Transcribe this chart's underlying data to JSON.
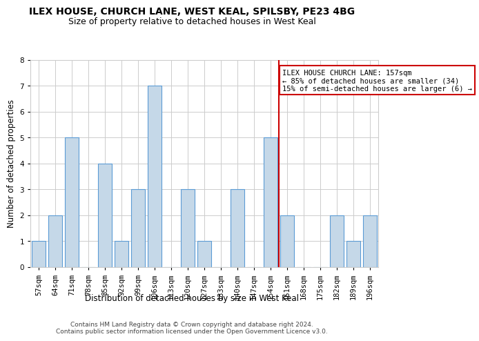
{
  "title1": "ILEX HOUSE, CHURCH LANE, WEST KEAL, SPILSBY, PE23 4BG",
  "title2": "Size of property relative to detached houses in West Keal",
  "xlabel": "Distribution of detached houses by size in West Keal",
  "ylabel": "Number of detached properties",
  "categories": [
    "57sqm",
    "64sqm",
    "71sqm",
    "78sqm",
    "85sqm",
    "92sqm",
    "99sqm",
    "106sqm",
    "113sqm",
    "120sqm",
    "127sqm",
    "133sqm",
    "140sqm",
    "147sqm",
    "154sqm",
    "161sqm",
    "168sqm",
    "175sqm",
    "182sqm",
    "189sqm",
    "196sqm"
  ],
  "values": [
    1,
    2,
    5,
    0,
    4,
    1,
    3,
    7,
    0,
    3,
    1,
    0,
    3,
    0,
    5,
    2,
    0,
    0,
    2,
    1,
    2
  ],
  "bar_color": "#c5d8e8",
  "bar_edge_color": "#5b9bd5",
  "vline_color": "#cc0000",
  "annotation_text": "ILEX HOUSE CHURCH LANE: 157sqm\n← 85% of detached houses are smaller (34)\n15% of semi-detached houses are larger (6) →",
  "annotation_box_color": "#ffffff",
  "annotation_box_edge_color": "#cc0000",
  "ylim": [
    0,
    8
  ],
  "yticks": [
    0,
    1,
    2,
    3,
    4,
    5,
    6,
    7,
    8
  ],
  "grid_color": "#cccccc",
  "background_color": "#ffffff",
  "footer_text": "Contains HM Land Registry data © Crown copyright and database right 2024.\nContains public sector information licensed under the Open Government Licence v3.0.",
  "title1_fontsize": 10,
  "title2_fontsize": 9,
  "xlabel_fontsize": 8.5,
  "ylabel_fontsize": 8.5,
  "tick_fontsize": 7.5,
  "annotation_fontsize": 7.5,
  "footer_fontsize": 6.5
}
